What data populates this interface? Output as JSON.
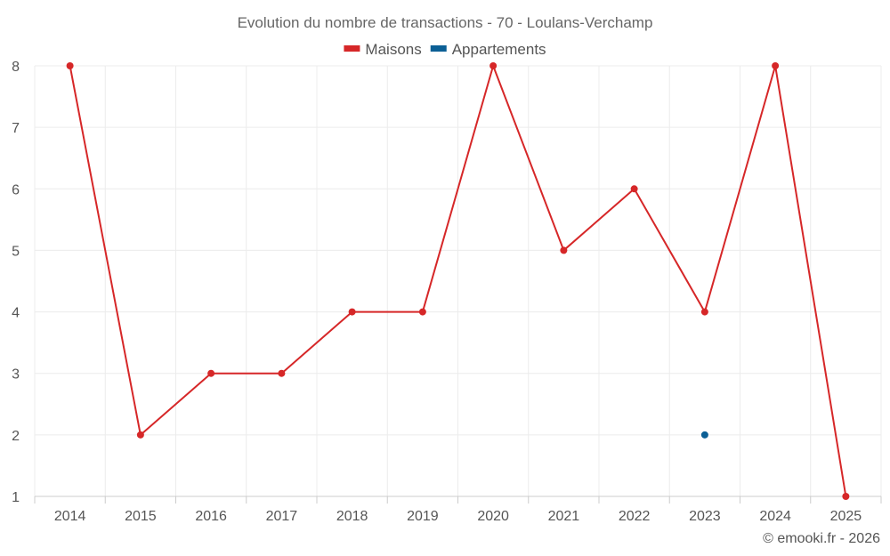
{
  "chart_data": {
    "type": "line",
    "title": "Evolution du nombre de transactions - 70 - Loulans-Verchamp",
    "categories": [
      "2014",
      "2015",
      "2016",
      "2017",
      "2018",
      "2019",
      "2020",
      "2021",
      "2022",
      "2023",
      "2024",
      "2025"
    ],
    "series": [
      {
        "name": "Maisons",
        "color": "#d62728",
        "values": [
          8,
          2,
          3,
          3,
          4,
          4,
          8,
          5,
          6,
          4,
          8,
          1
        ]
      },
      {
        "name": "Appartements",
        "color": "#0b5f95",
        "values": [
          null,
          null,
          null,
          null,
          null,
          null,
          null,
          null,
          null,
          2,
          null,
          null
        ]
      }
    ],
    "ylim": [
      1,
      8
    ],
    "yticks": [
      "1",
      "2",
      "3",
      "4",
      "5",
      "6",
      "7",
      "8"
    ],
    "xlabel": "",
    "ylabel": "",
    "grid": true,
    "legend": "top-center"
  },
  "credit": "© emooki.fr - 2026"
}
